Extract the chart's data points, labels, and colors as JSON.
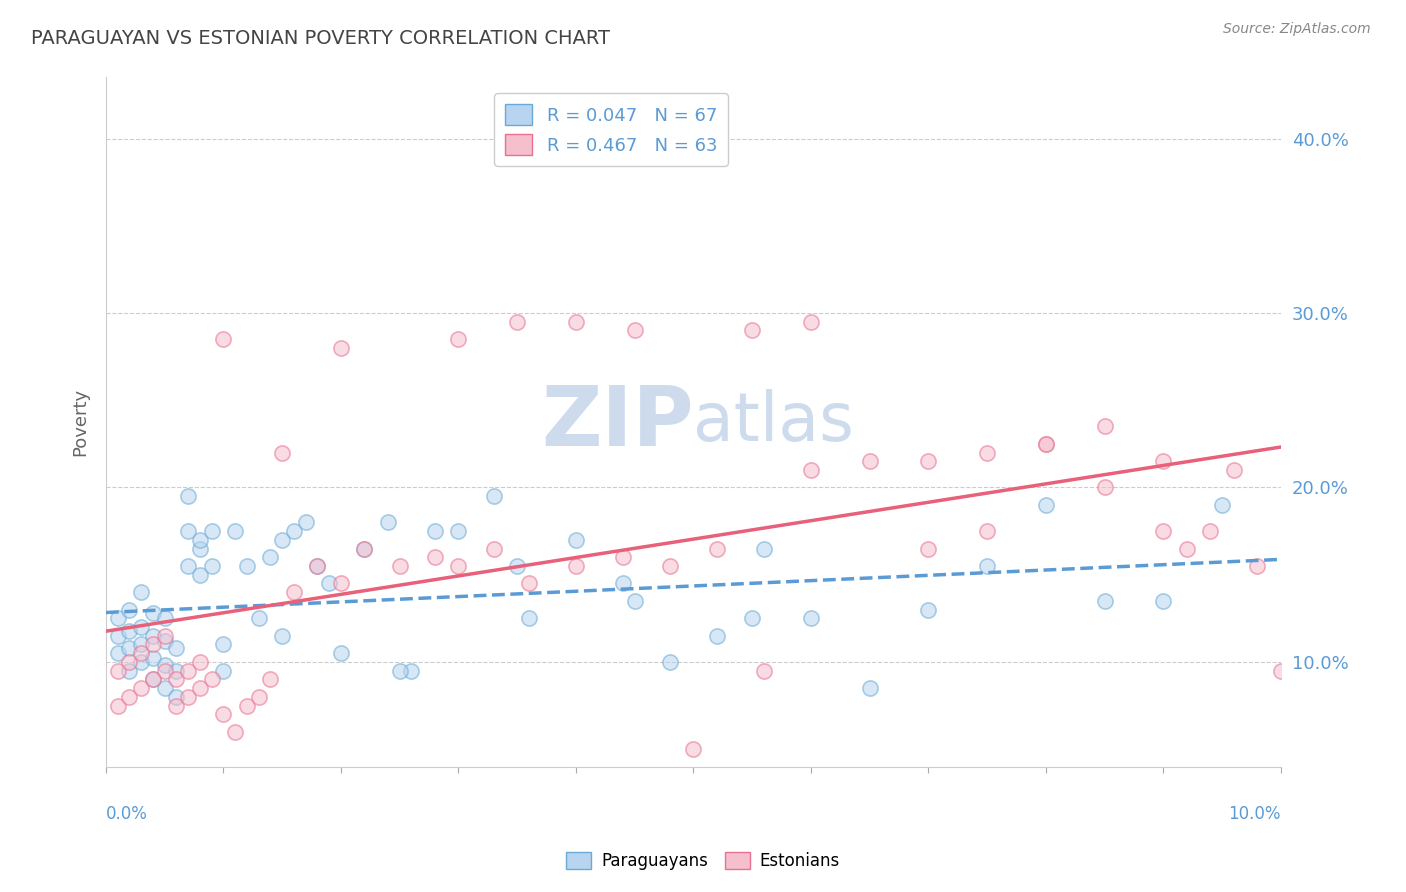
{
  "title": "PARAGUAYAN VS ESTONIAN POVERTY CORRELATION CHART",
  "source": "Source: ZipAtlas.com",
  "ylabel": "Poverty",
  "legend_blue_label": "Paraguayans",
  "legend_pink_label": "Estonians",
  "legend_blue_r": "R = 0.047",
  "legend_blue_n": "N = 67",
  "legend_pink_r": "R = 0.467",
  "legend_pink_n": "N = 63",
  "blue_color": "#b8d4f0",
  "pink_color": "#f5bfce",
  "blue_edge_color": "#6aaad4",
  "pink_edge_color": "#e87090",
  "blue_line_color": "#5b9bd5",
  "pink_line_color": "#e8607a",
  "title_color": "#444444",
  "text_color": "#5b9bd5",
  "ytick_color": "#5b9bd5",
  "source_color": "#888888",
  "ylabel_color": "#666666",
  "watermark_zip": "ZIP",
  "watermark_atlas": "atlas",
  "xmin": 0.0,
  "xmax": 0.1,
  "ymin": 0.04,
  "ymax": 0.435,
  "yticks": [
    0.1,
    0.2,
    0.3,
    0.4
  ],
  "ytick_labels": [
    "10.0%",
    "20.0%",
    "30.0%",
    "40.0%"
  ],
  "background_color": "#ffffff",
  "grid_color": "#cccccc",
  "watermark_color": "#c8d8ec",
  "marker_size": 120,
  "marker_alpha": 0.55,
  "blue_x": [
    0.001,
    0.001,
    0.001,
    0.002,
    0.002,
    0.002,
    0.002,
    0.003,
    0.003,
    0.003,
    0.003,
    0.004,
    0.004,
    0.004,
    0.004,
    0.005,
    0.005,
    0.005,
    0.005,
    0.006,
    0.006,
    0.006,
    0.007,
    0.007,
    0.007,
    0.008,
    0.008,
    0.008,
    0.009,
    0.009,
    0.01,
    0.01,
    0.011,
    0.012,
    0.013,
    0.014,
    0.015,
    0.016,
    0.017,
    0.018,
    0.019,
    0.02,
    0.022,
    0.024,
    0.026,
    0.028,
    0.03,
    0.033,
    0.036,
    0.04,
    0.044,
    0.048,
    0.052,
    0.056,
    0.06,
    0.065,
    0.07,
    0.075,
    0.08,
    0.085,
    0.055,
    0.045,
    0.035,
    0.025,
    0.015,
    0.09,
    0.095
  ],
  "blue_y": [
    0.105,
    0.115,
    0.125,
    0.095,
    0.108,
    0.118,
    0.13,
    0.1,
    0.11,
    0.12,
    0.14,
    0.09,
    0.102,
    0.115,
    0.128,
    0.085,
    0.098,
    0.112,
    0.125,
    0.08,
    0.095,
    0.108,
    0.175,
    0.155,
    0.195,
    0.165,
    0.15,
    0.17,
    0.155,
    0.175,
    0.095,
    0.11,
    0.175,
    0.155,
    0.125,
    0.16,
    0.17,
    0.175,
    0.18,
    0.155,
    0.145,
    0.105,
    0.165,
    0.18,
    0.095,
    0.175,
    0.175,
    0.195,
    0.125,
    0.17,
    0.145,
    0.1,
    0.115,
    0.165,
    0.125,
    0.085,
    0.13,
    0.155,
    0.19,
    0.135,
    0.125,
    0.135,
    0.155,
    0.095,
    0.115,
    0.135,
    0.19
  ],
  "pink_x": [
    0.001,
    0.001,
    0.002,
    0.002,
    0.003,
    0.003,
    0.004,
    0.004,
    0.005,
    0.005,
    0.006,
    0.006,
    0.007,
    0.007,
    0.008,
    0.008,
    0.009,
    0.01,
    0.011,
    0.012,
    0.013,
    0.014,
    0.016,
    0.018,
    0.02,
    0.022,
    0.025,
    0.028,
    0.03,
    0.033,
    0.036,
    0.04,
    0.044,
    0.048,
    0.052,
    0.056,
    0.06,
    0.065,
    0.07,
    0.075,
    0.08,
    0.085,
    0.09,
    0.04,
    0.055,
    0.015,
    0.05,
    0.06,
    0.035,
    0.045,
    0.07,
    0.075,
    0.08,
    0.085,
    0.09,
    0.092,
    0.094,
    0.096,
    0.098,
    0.1,
    0.03,
    0.02,
    0.01
  ],
  "pink_y": [
    0.075,
    0.095,
    0.08,
    0.1,
    0.085,
    0.105,
    0.09,
    0.11,
    0.095,
    0.115,
    0.075,
    0.09,
    0.08,
    0.095,
    0.085,
    0.1,
    0.09,
    0.07,
    0.06,
    0.075,
    0.08,
    0.09,
    0.14,
    0.155,
    0.145,
    0.165,
    0.155,
    0.16,
    0.155,
    0.165,
    0.145,
    0.155,
    0.16,
    0.155,
    0.165,
    0.095,
    0.21,
    0.215,
    0.215,
    0.22,
    0.225,
    0.2,
    0.215,
    0.295,
    0.29,
    0.22,
    0.05,
    0.295,
    0.295,
    0.29,
    0.165,
    0.175,
    0.225,
    0.235,
    0.175,
    0.165,
    0.175,
    0.21,
    0.155,
    0.095,
    0.285,
    0.28,
    0.285
  ]
}
